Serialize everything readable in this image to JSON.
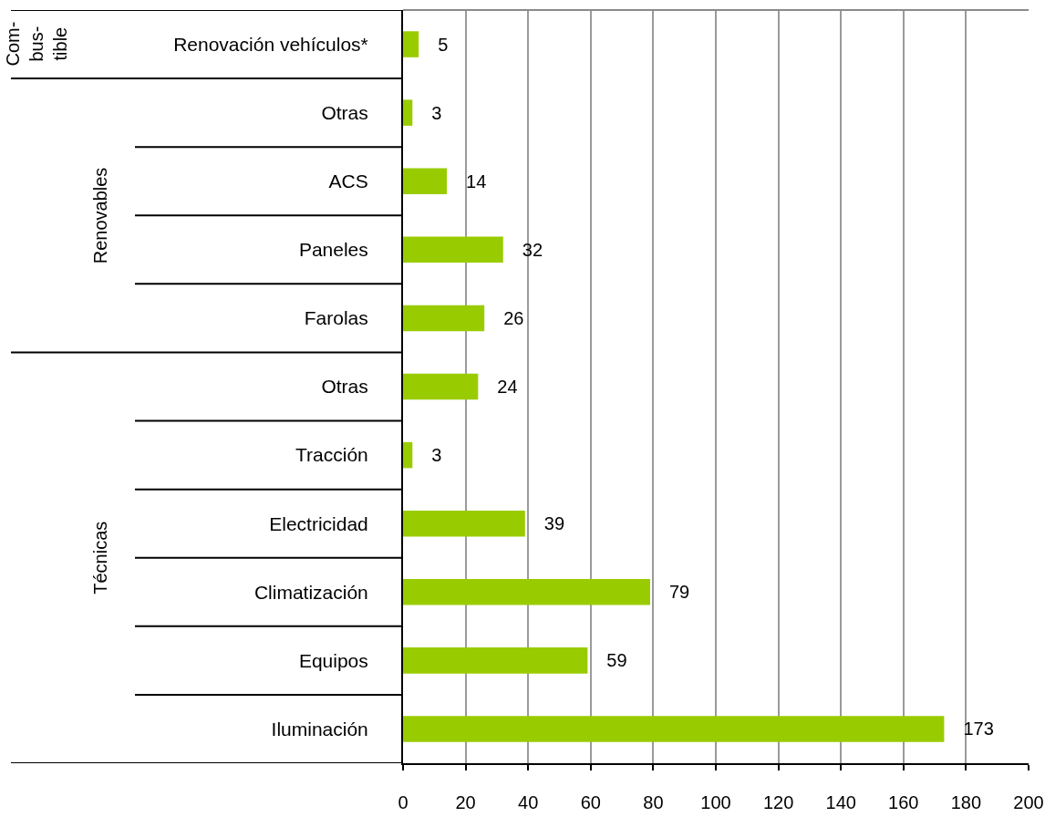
{
  "chart_data": {
    "type": "bar",
    "orientation": "horizontal",
    "categories": [
      "Renovación vehículos*",
      "Otras",
      "ACS",
      "Paneles",
      "Farolas",
      "Otras",
      "Tracción",
      "Electricidad",
      "Climatización",
      "Equipos",
      "Iluminación"
    ],
    "values": [
      5,
      3,
      14,
      32,
      26,
      24,
      3,
      39,
      79,
      59,
      173
    ],
    "color": "#99cc00",
    "xlim": [
      0,
      200
    ],
    "xticks": [
      0,
      20,
      40,
      60,
      80,
      100,
      120,
      140,
      160,
      180,
      200
    ],
    "grid": "x",
    "data_labels": true,
    "annotations": [
      "Com-\nbus-\ntible",
      "Renovables",
      "Técnicas"
    ]
  }
}
